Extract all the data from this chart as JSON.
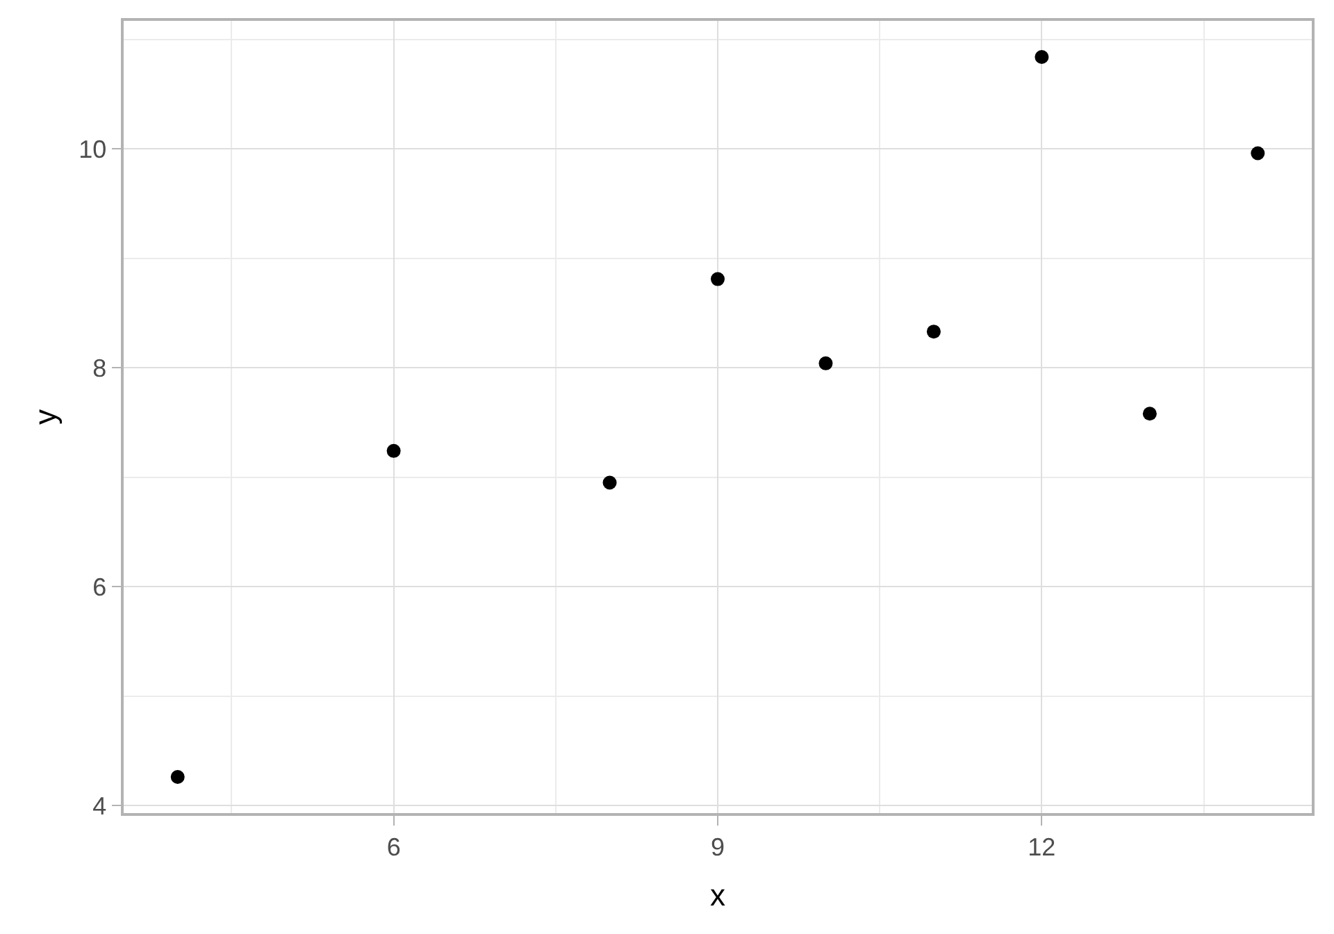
{
  "chart_data": {
    "type": "scatter",
    "xlabel": "x",
    "ylabel": "y",
    "x": [
      4,
      6,
      8,
      9,
      10,
      11,
      12,
      13,
      14
    ],
    "values": [
      4.26,
      7.24,
      6.95,
      8.81,
      8.04,
      8.33,
      10.84,
      7.58,
      9.96
    ],
    "color": "#000000",
    "marker": "circle",
    "xlim": [
      3.5,
      14.5
    ],
    "ylim": [
      3.93,
      11.17
    ],
    "xticks": [
      6,
      9,
      12
    ],
    "yticks": [
      4,
      6,
      8,
      10
    ],
    "grid": true
  }
}
